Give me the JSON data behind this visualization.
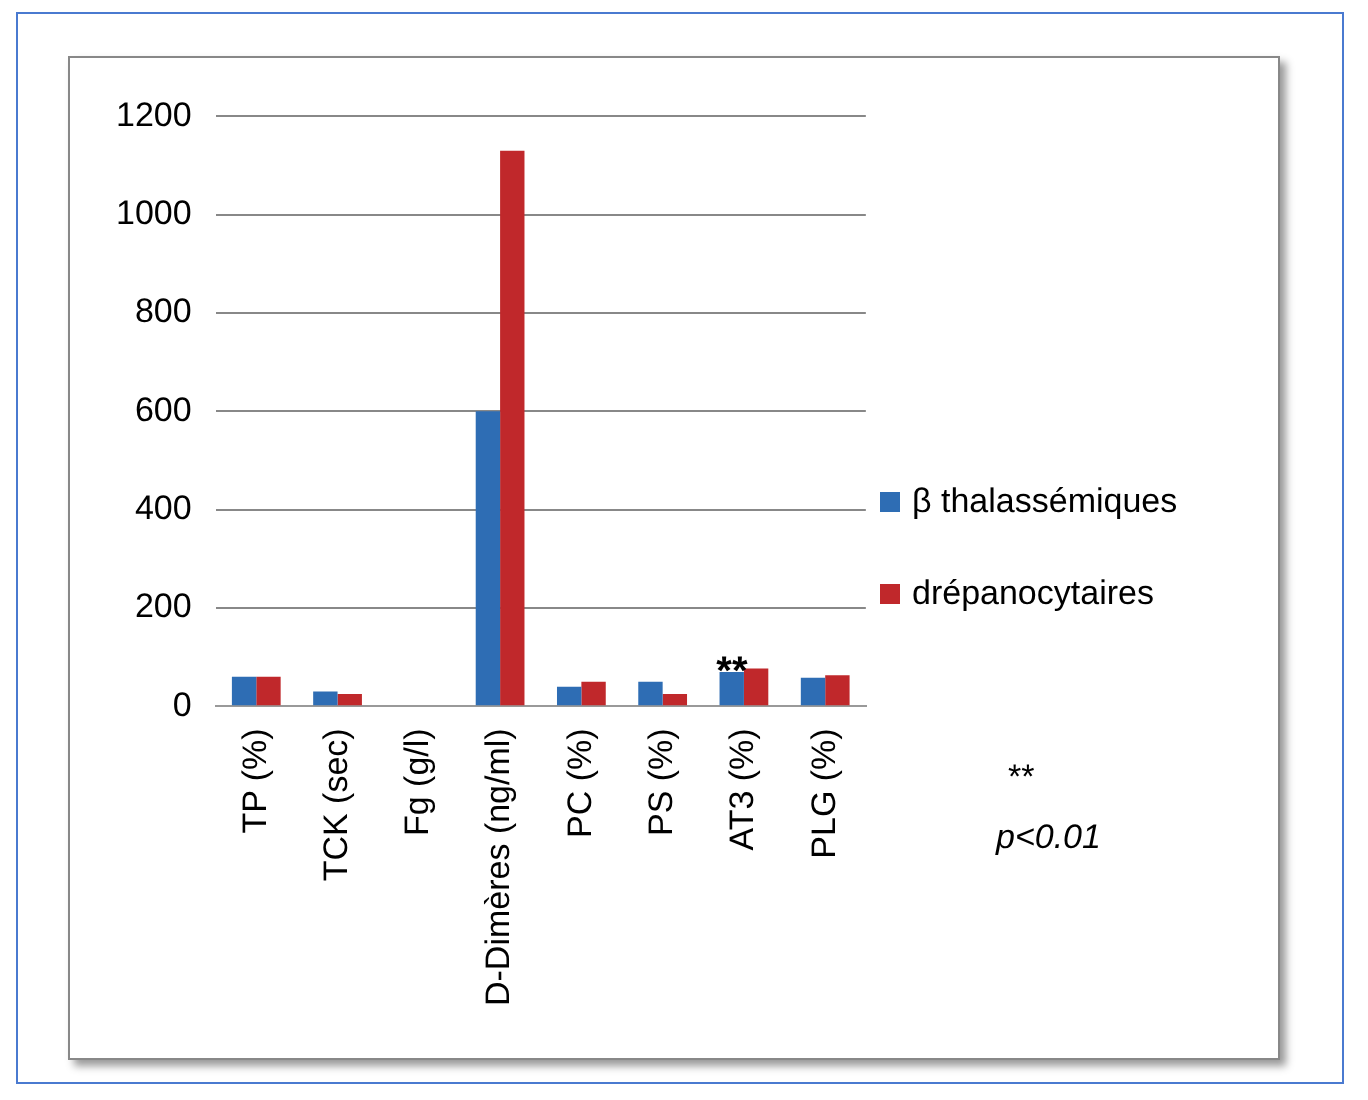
{
  "chart_data": {
    "type": "bar",
    "categories": [
      "TP (%)",
      "TCK (sec)",
      "Fg (g/l)",
      "D-Dimères (ng/ml)",
      "PC (%)",
      "PS (%)",
      "AT3 (%)",
      "PLG (%)"
    ],
    "series": [
      {
        "name": "β thalassémiques",
        "color": "#2e6db4",
        "values": [
          60,
          30,
          null,
          600,
          40,
          50,
          70,
          58
        ]
      },
      {
        "name": "drépanocytaires",
        "color": "#c0282b",
        "values": [
          60,
          25,
          null,
          1130,
          50,
          25,
          77,
          63
        ]
      }
    ],
    "ylim": [
      0,
      1200
    ],
    "yticks": [
      0,
      200,
      400,
      600,
      800,
      1000,
      1200
    ],
    "grid": "y",
    "legend": "right",
    "annotations": [
      {
        "text": "**",
        "x": "AT3 (%)",
        "y": 77
      },
      "**\np<0.01"
    ]
  }
}
